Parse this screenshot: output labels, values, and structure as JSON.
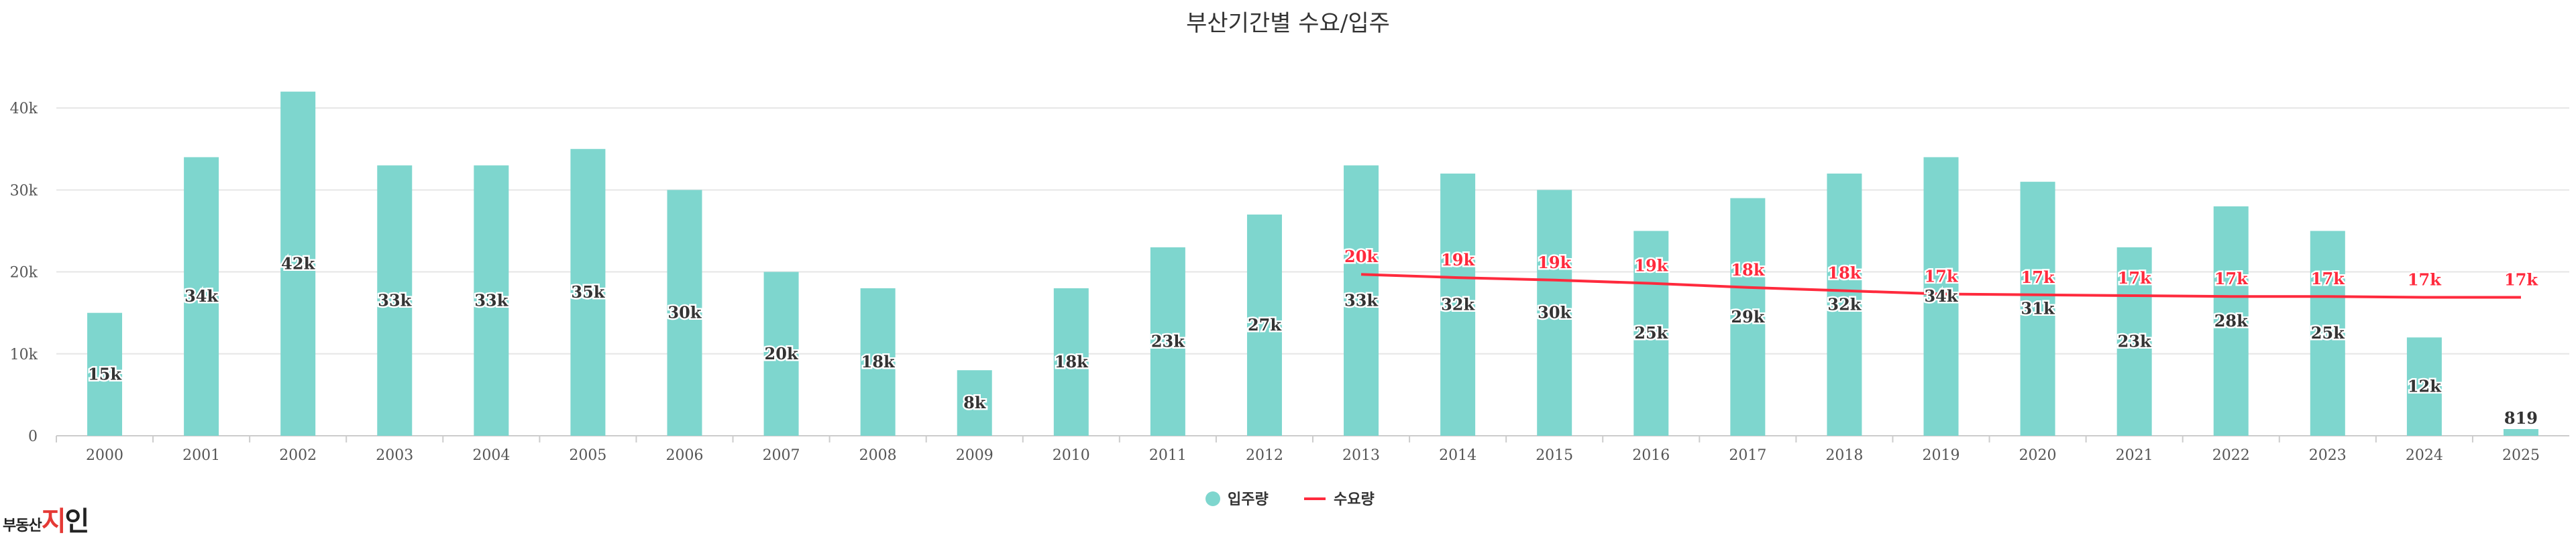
{
  "colors": {
    "bar": "#7ed6ce",
    "line": "#ff2a3d",
    "grid": "#e6e6e6",
    "axis": "#cccccc"
  },
  "chart_data": {
    "type": "bar",
    "title": "부산기간별 수요/입주",
    "xlabel": "",
    "ylabel": "",
    "ylim": [
      0,
      45000
    ],
    "yticks": [
      0,
      10000,
      20000,
      30000,
      40000
    ],
    "ytick_labels": [
      "0",
      "10k",
      "20k",
      "30k",
      "40k"
    ],
    "grid": true,
    "legend_position": "bottom-center",
    "categories": [
      "2000",
      "2001",
      "2002",
      "2003",
      "2004",
      "2005",
      "2006",
      "2007",
      "2008",
      "2009",
      "2010",
      "2011",
      "2012",
      "2013",
      "2014",
      "2015",
      "2016",
      "2017",
      "2018",
      "2019",
      "2020",
      "2021",
      "2022",
      "2023",
      "2024",
      "2025"
    ],
    "series": [
      {
        "name": "입주량",
        "type": "bar",
        "values": [
          15000,
          34000,
          42000,
          33000,
          33000,
          35000,
          30000,
          20000,
          18000,
          8000,
          18000,
          23000,
          27000,
          33000,
          32000,
          30000,
          25000,
          29000,
          32000,
          34000,
          31000,
          23000,
          28000,
          25000,
          12000,
          819
        ],
        "labels": [
          "15k",
          "34k",
          "42k",
          "33k",
          "33k",
          "35k",
          "30k",
          "20k",
          "18k",
          "8k",
          "18k",
          "23k",
          "27k",
          "33k",
          "32k",
          "30k",
          "25k",
          "29k",
          "32k",
          "34k",
          "31k",
          "23k",
          "28k",
          "25k",
          "12k",
          "819"
        ]
      },
      {
        "name": "수요량",
        "type": "line",
        "values": [
          null,
          null,
          null,
          null,
          null,
          null,
          null,
          null,
          null,
          null,
          null,
          null,
          null,
          19700,
          19300,
          19000,
          18600,
          18100,
          17700,
          17300,
          17200,
          17100,
          17000,
          17000,
          16900,
          16900
        ],
        "labels": [
          null,
          null,
          null,
          null,
          null,
          null,
          null,
          null,
          null,
          null,
          null,
          null,
          null,
          "20k",
          "19k",
          "19k",
          "19k",
          "18k",
          "18k",
          "17k",
          "17k",
          "17k",
          "17k",
          "17k",
          "17k",
          "17k"
        ]
      }
    ]
  },
  "logo": {
    "small_text": "부동산",
    "big_text_a": "지",
    "big_text_b": "인",
    "tag_text": ""
  }
}
